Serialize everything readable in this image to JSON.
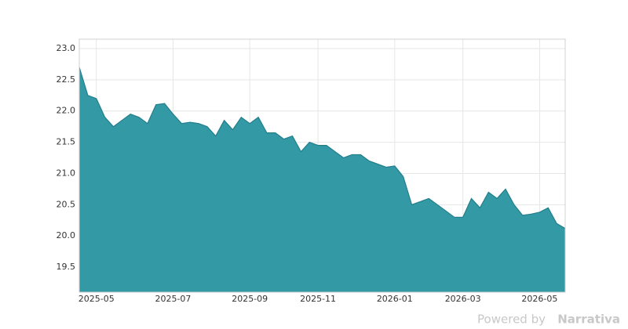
{
  "chart_data": {
    "type": "area",
    "x": [
      "2025-04",
      "2025-04",
      "2025-05",
      "2025-05",
      "2025-05",
      "2025-05",
      "2025-06",
      "2025-06",
      "2025-06",
      "2025-06",
      "2025-06",
      "2025-07",
      "2025-07",
      "2025-07",
      "2025-07",
      "2025-08",
      "2025-08",
      "2025-08",
      "2025-08",
      "2025-08",
      "2025-09",
      "2025-09",
      "2025-09",
      "2025-09",
      "2025-10",
      "2025-10",
      "2025-10",
      "2025-10",
      "2025-11",
      "2025-11",
      "2025-11",
      "2025-11",
      "2025-11",
      "2025-12",
      "2025-12",
      "2025-12",
      "2025-12",
      "2026-01",
      "2026-01",
      "2026-01",
      "2026-01",
      "2026-02",
      "2026-02",
      "2026-02",
      "2026-02",
      "2026-03",
      "2026-03",
      "2026-03",
      "2026-03",
      "2026-03",
      "2026-04",
      "2026-04",
      "2026-04",
      "2026-04",
      "2026-05",
      "2026-05",
      "2026-05",
      "2026-05"
    ],
    "values": [
      22.7,
      22.25,
      22.2,
      21.9,
      21.75,
      21.85,
      21.95,
      21.9,
      21.8,
      22.1,
      22.12,
      21.95,
      21.8,
      21.82,
      21.8,
      21.75,
      21.6,
      21.85,
      21.7,
      21.9,
      21.8,
      21.9,
      21.65,
      21.65,
      21.55,
      21.6,
      21.35,
      21.5,
      21.45,
      21.45,
      21.35,
      21.25,
      21.3,
      21.3,
      21.2,
      21.15,
      21.1,
      21.12,
      20.95,
      20.5,
      20.55,
      20.6,
      20.5,
      20.4,
      20.3,
      20.3,
      20.6,
      20.45,
      20.7,
      20.6,
      20.75,
      20.5,
      20.33,
      20.35,
      20.38,
      20.45,
      20.2,
      20.12
    ],
    "color": "#3399a5",
    "line_color": "#237f8b",
    "ylim": [
      19.1,
      23.15
    ],
    "yticks": [
      {
        "value": 19.5,
        "label": "19.5"
      },
      {
        "value": 20,
        "label": "20.0"
      },
      {
        "value": 20.5,
        "label": "20.5"
      },
      {
        "value": 21,
        "label": "21.0"
      },
      {
        "value": 21.5,
        "label": "21.5"
      },
      {
        "value": 22,
        "label": "22.0"
      },
      {
        "value": 22.5,
        "label": "22.5"
      },
      {
        "value": 23,
        "label": "23.0"
      }
    ],
    "xticks": [
      "2025-05",
      "2025-07",
      "2025-09",
      "2025-11",
      "2026-01",
      "2026-03",
      "2026-05"
    ],
    "grid": true,
    "credit": "Powered by",
    "credit_brand": "Narrativa"
  }
}
